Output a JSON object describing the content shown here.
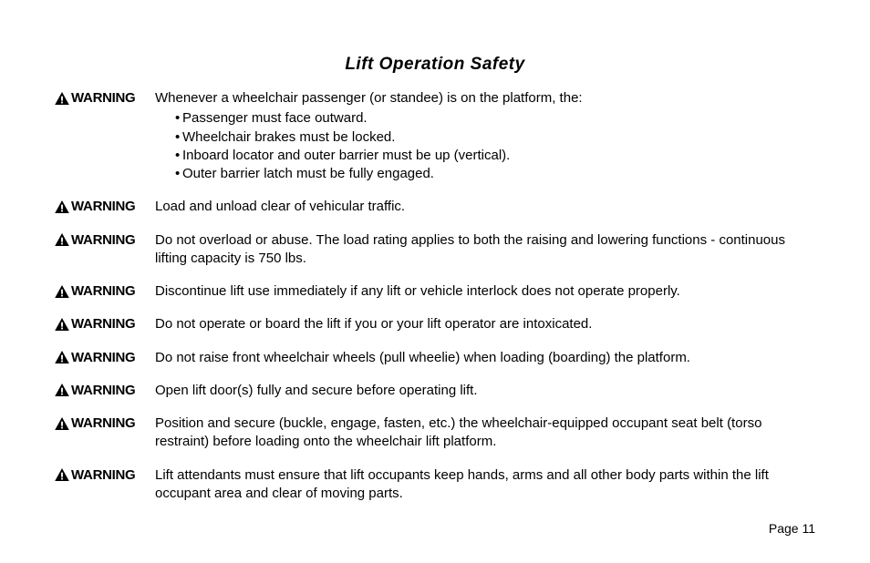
{
  "title": "Lift Operation Safety",
  "warning_label": "WARNING",
  "icon": {
    "fill": "#000000",
    "exclamation_fill": "#ffffff"
  },
  "warnings": [
    {
      "lead": "Whenever a wheelchair passenger (or standee) is on the platform, the:",
      "items": [
        "Passenger must face outward.",
        "Wheelchair brakes must be locked.",
        "Inboard locator and outer barrier must be up (vertical).",
        "Outer barrier latch must be fully engaged."
      ]
    },
    {
      "lead": "Load and unload clear of vehicular traffic."
    },
    {
      "lead": "Do not overload or abuse.  The load rating applies to both the raising and lowering functions - continuous lifting capacity is 750 lbs."
    },
    {
      "lead": "Discontinue lift use immediately if any lift or vehicle interlock does not operate properly."
    },
    {
      "lead": "Do not operate or board the lift if you or your lift operator are intoxicated."
    },
    {
      "lead": "Do not raise front wheelchair wheels (pull wheelie) when loading (boarding) the platform."
    },
    {
      "lead": "Open lift door(s) fully and secure before operating lift."
    },
    {
      "lead": "Position and secure (buckle, engage, fasten, etc.) the wheelchair-equipped occupant seat belt (torso restraint) before loading onto the wheelchair lift platform."
    },
    {
      "lead": "Lift attendants must ensure that lift occupants keep hands, arms and all other body parts within the lift occupant area and clear of moving parts."
    }
  ],
  "page_number": "Page 11"
}
